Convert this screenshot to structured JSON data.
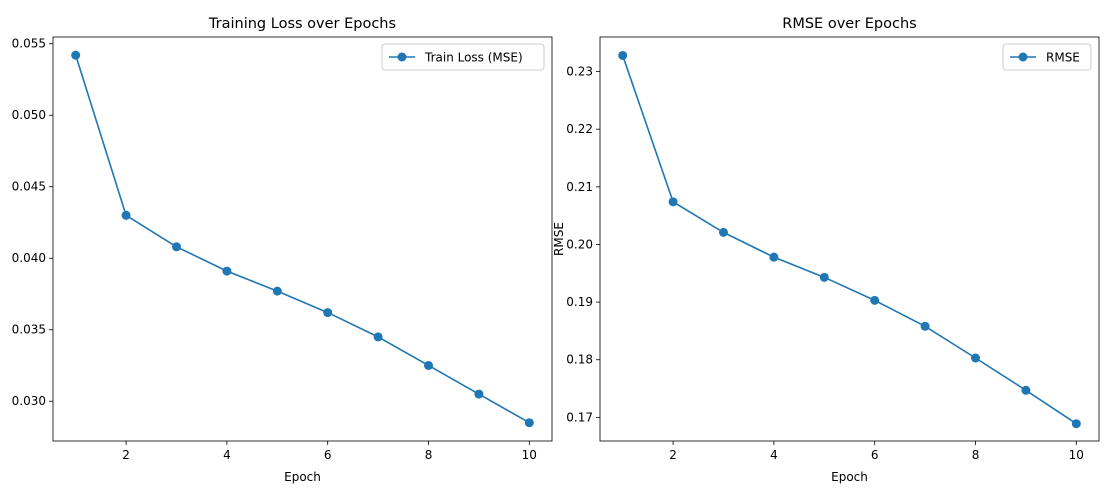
{
  "chart_data": [
    {
      "type": "line",
      "title": "Training Loss over Epochs",
      "xlabel": "Epoch",
      "ylabel": "",
      "x": [
        1,
        2,
        3,
        4,
        5,
        6,
        7,
        8,
        9,
        10
      ],
      "series": [
        {
          "name": "Train Loss (MSE)",
          "values": [
            0.0542,
            0.043,
            0.0408,
            0.0391,
            0.0377,
            0.0362,
            0.0345,
            0.0325,
            0.0305,
            0.0285
          ],
          "color": "#1f77b4",
          "marker": "circle"
        }
      ],
      "xlim": [
        0.55,
        10.45
      ],
      "ylim": [
        0.02722,
        0.05547
      ],
      "xticks": [
        2,
        4,
        6,
        8,
        10
      ],
      "yticks": [
        0.03,
        0.035,
        0.04,
        0.045,
        0.05,
        0.055
      ],
      "ytick_labels": [
        "0.030",
        "0.035",
        "0.040",
        "0.045",
        "0.050",
        "0.055"
      ],
      "xtick_labels": [
        "2",
        "4",
        "6",
        "8",
        "10"
      ],
      "legend": "upper right",
      "grid": false
    },
    {
      "type": "line",
      "title": "RMSE over Epochs",
      "xlabel": "Epoch",
      "ylabel": "RMSE",
      "x": [
        1,
        2,
        3,
        4,
        5,
        6,
        7,
        8,
        9,
        10
      ],
      "series": [
        {
          "name": "RMSE",
          "values": [
            0.2328,
            0.2074,
            0.2021,
            0.1978,
            0.1943,
            0.1903,
            0.1858,
            0.1803,
            0.1747,
            0.1689
          ],
          "color": "#1f77b4",
          "marker": "circle"
        }
      ],
      "xlim": [
        0.55,
        10.45
      ],
      "ylim": [
        0.1659,
        0.236
      ],
      "xticks": [
        2,
        4,
        6,
        8,
        10
      ],
      "yticks": [
        0.17,
        0.18,
        0.19,
        0.2,
        0.21,
        0.22,
        0.23
      ],
      "ytick_labels": [
        "0.17",
        "0.18",
        "0.19",
        "0.20",
        "0.21",
        "0.22",
        "0.23"
      ],
      "xtick_labels": [
        "2",
        "4",
        "6",
        "8",
        "10"
      ],
      "legend": "upper right",
      "grid": false
    }
  ]
}
